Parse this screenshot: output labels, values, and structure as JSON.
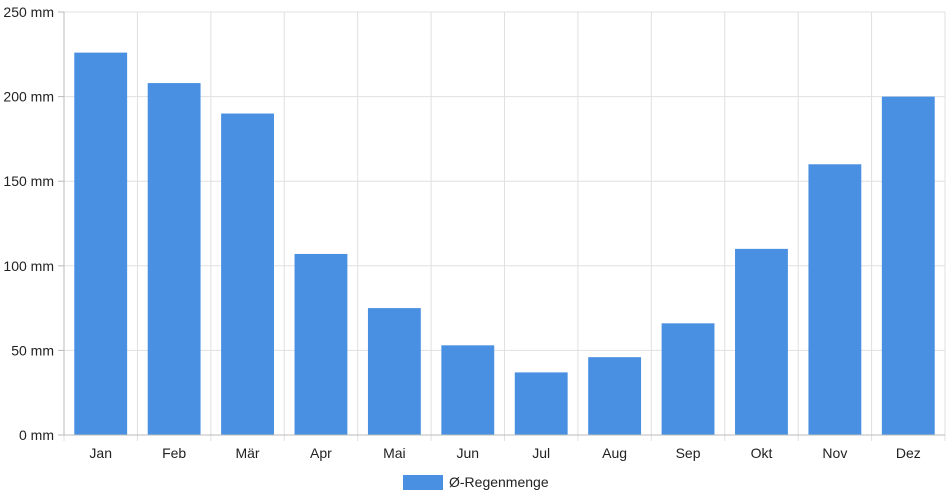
{
  "chart_data": {
    "type": "bar",
    "categories": [
      "Jan",
      "Feb",
      "Mär",
      "Apr",
      "Mai",
      "Jun",
      "Jul",
      "Aug",
      "Sep",
      "Okt",
      "Nov",
      "Dez"
    ],
    "series": [
      {
        "name": "Ø-Regenmenge",
        "values": [
          226,
          208,
          190,
          107,
          75,
          53,
          37,
          46,
          66,
          110,
          160,
          200
        ]
      }
    ],
    "y_unit": "mm",
    "ylim": [
      0,
      250
    ],
    "y_ticks": [
      "0 mm",
      "50 mm",
      "100 mm",
      "150 mm",
      "200 mm",
      "250 mm"
    ],
    "grid": true,
    "legend_position": "bottom-center",
    "colors": {
      "bar": "#4a90e2",
      "grid": "#e0e0e0",
      "axis": "#bbbbbb"
    }
  }
}
